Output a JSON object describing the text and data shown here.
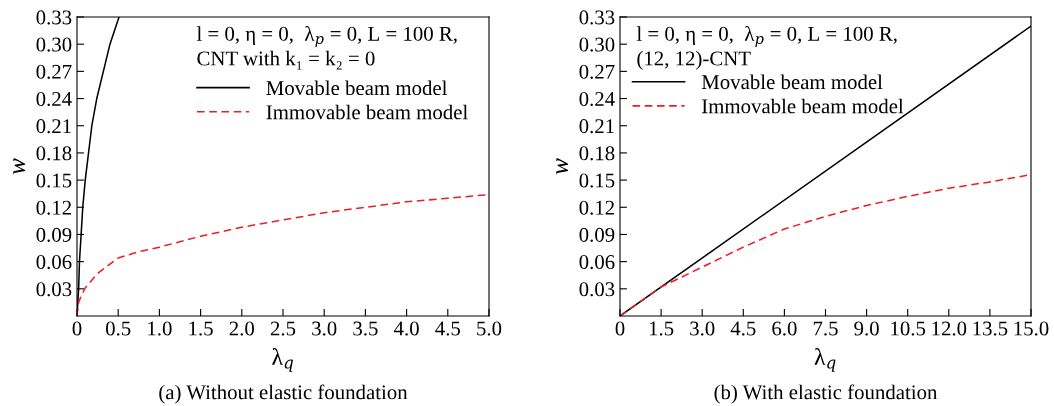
{
  "chart_data": [
    {
      "type": "line",
      "title": "(a) Without elastic foundation",
      "xlabel": "λ$_{q}$",
      "ylabel": "w",
      "annotations": [
        "l = 0, η = 0,  λ$_{p}$ = 0, L = 100 R,",
        "CNT with k₁ = k₂ = 0"
      ],
      "xlim": [
        0,
        5
      ],
      "ylim": [
        0,
        0.33
      ],
      "xticks": [
        0,
        0.5,
        {
          "value": 1,
          "label": "1.0"
        },
        1.5,
        {
          "value": 2,
          "label": "2.0"
        },
        2.5,
        {
          "value": 3,
          "label": "3.0"
        },
        3.5,
        {
          "value": 4,
          "label": "4.0"
        },
        4.5,
        {
          "value": 5,
          "label": "5.0"
        }
      ],
      "yticks": [
        0.03,
        0.06,
        0.09,
        0.12,
        0.15,
        0.18,
        0.21,
        0.24,
        0.27,
        {
          "value": 0.3,
          "label": "0.30"
        },
        0.33
      ],
      "legend": "top right",
      "grid": false,
      "series": [
        {
          "name": "Movable beam model",
          "color": "#000000",
          "line_style": "solid",
          "x": [
            0,
            0.02,
            0.03,
            0.05,
            0.07,
            0.1,
            0.14,
            0.18,
            0.24,
            0.32,
            0.4,
            0.51
          ],
          "values": [
            0,
            0.03,
            0.06,
            0.09,
            0.12,
            0.15,
            0.18,
            0.21,
            0.24,
            0.27,
            0.3,
            0.33
          ]
        },
        {
          "name": "Immovable beam model",
          "color": "#ee1c25",
          "line_style": "dashed",
          "x": [
            0,
            0.02,
            0.05,
            0.1,
            0.25,
            0.5,
            0.75,
            1.0,
            1.5,
            2.0,
            2.5,
            3.0,
            3.5,
            4.0,
            4.5,
            5.0
          ],
          "values": [
            0,
            0.015,
            0.022,
            0.031,
            0.047,
            0.064,
            0.071,
            0.076,
            0.088,
            0.098,
            0.106,
            0.114,
            0.12,
            0.126,
            0.13,
            0.134
          ]
        }
      ]
    },
    {
      "type": "line",
      "title": "(b) With elastic foundation",
      "xlabel": "λ$_{q}$",
      "ylabel": "w",
      "annotations": [
        "l = 0, η = 0,  λ$_{p}$ = 0, L = 100 R,",
        "(12, 12)-CNT"
      ],
      "xlim": [
        0,
        15
      ],
      "ylim": [
        0,
        0.33
      ],
      "xticks": [
        0,
        1.5,
        {
          "value": 3,
          "label": "3.0"
        },
        4.5,
        {
          "value": 6,
          "label": "6.0"
        },
        7.5,
        {
          "value": 9,
          "label": "9.0"
        },
        10.5,
        {
          "value": 12,
          "label": "12.0"
        },
        13.5,
        {
          "value": 15,
          "label": "15.0"
        }
      ],
      "yticks": [
        0.03,
        0.06,
        0.09,
        0.12,
        0.15,
        0.18,
        0.21,
        0.24,
        0.27,
        {
          "value": 0.3,
          "label": "0.30"
        },
        0.33
      ],
      "legend": "top left",
      "grid": false,
      "series": [
        {
          "name": "Movable beam model",
          "color": "#000000",
          "line_style": "solid",
          "x": [
            0,
            15
          ],
          "values": [
            0,
            0.32
          ]
        },
        {
          "name": "Immovable beam model",
          "color": "#ee1c25",
          "line_style": "dashed",
          "x": [
            0,
            0.75,
            1.5,
            3.0,
            4.5,
            6.0,
            7.5,
            9.0,
            10.5,
            12.0,
            13.5,
            15.0
          ],
          "values": [
            0,
            0.016,
            0.032,
            0.054,
            0.076,
            0.096,
            0.11,
            0.122,
            0.132,
            0.141,
            0.148,
            0.156
          ]
        }
      ]
    }
  ]
}
